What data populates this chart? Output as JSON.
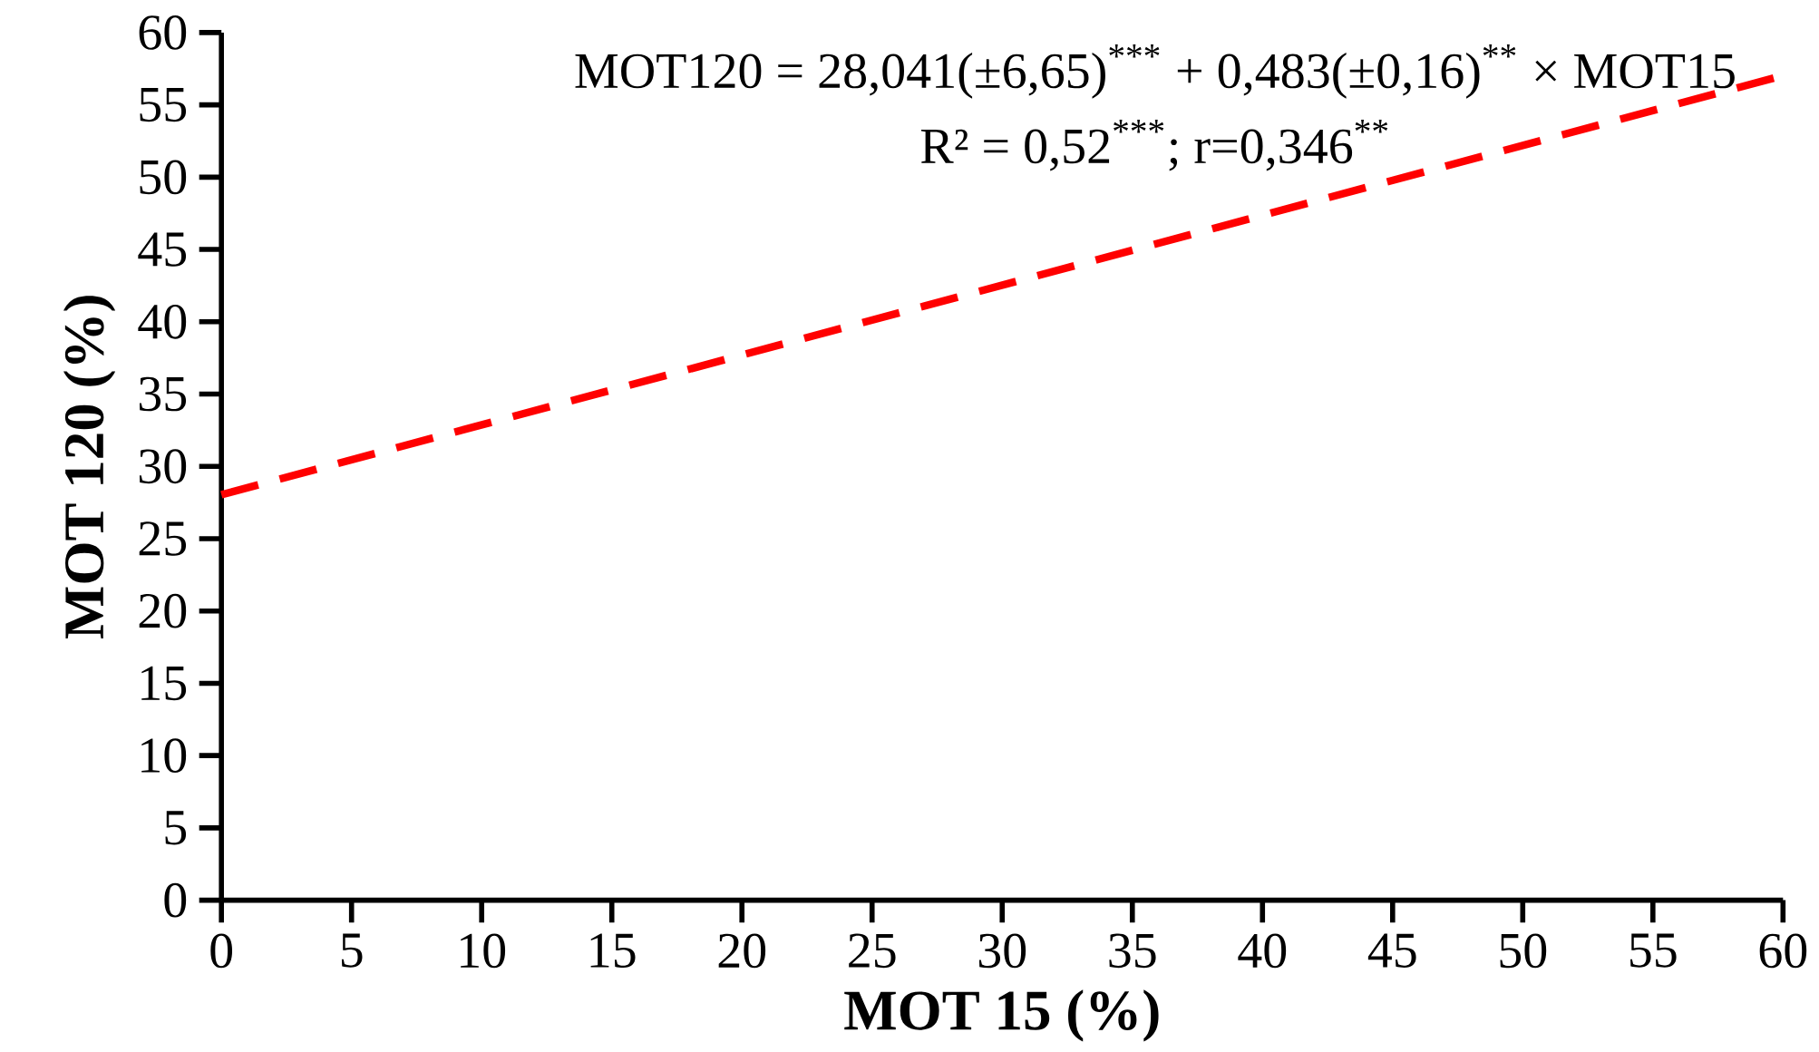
{
  "chart_data": {
    "type": "line",
    "xlabel": "MOT 15 (%)",
    "ylabel": "MOT 120 (%)",
    "annotations": [
      "MOT120 = 28,041(±6,65)$^{***}$ + 0,483(±0,16)$^{**}$ × MOT15",
      "R² = 0,52$^{***}$; r=0,346$^{**}$"
    ],
    "x": [
      0,
      60
    ],
    "series": [
      {
        "color": "#ff0000",
        "values": [
          28.04,
          57.02
        ],
        "line_style": "dashed"
      }
    ],
    "marker": "none",
    "xlim": [
      0,
      60
    ],
    "ylim": [
      0,
      60
    ],
    "xticks": [
      0,
      5,
      10,
      15,
      20,
      25,
      30,
      35,
      40,
      45,
      50,
      55,
      60
    ],
    "yticks": [
      0,
      5,
      10,
      15,
      20,
      25,
      30,
      35,
      40,
      45,
      50,
      55,
      60
    ]
  }
}
